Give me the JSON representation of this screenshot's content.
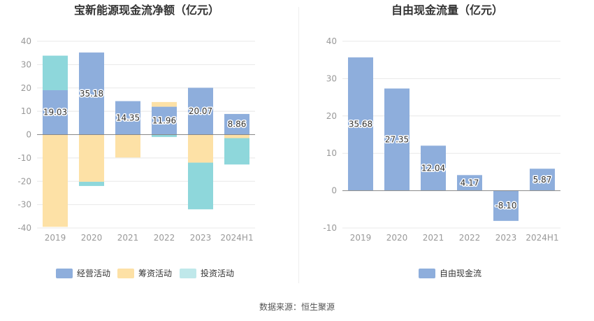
{
  "colors": {
    "operating": "#8eaedc",
    "financing": "#fde1a6",
    "investing": "#8ed7db",
    "investing_legend": "#bfe8ea",
    "fcf": "#8eaedc",
    "grid": "#e8e8e8",
    "axis_text": "#999999"
  },
  "source_text": "数据来源：恒生聚源",
  "chart_data": [
    {
      "type": "bar",
      "stacked": true,
      "title": "宝新能源现金流净额（亿元）",
      "categories": [
        "2019",
        "2020",
        "2021",
        "2022",
        "2023",
        "2024H1"
      ],
      "ylim": [
        -40,
        40
      ],
      "yticks": [
        40,
        30,
        20,
        10,
        0,
        -10,
        -20,
        -30,
        -40
      ],
      "grid": true,
      "legend": "bottom",
      "series": [
        {
          "name": "经营活动",
          "key": "operating",
          "values": [
            19.03,
            35.18,
            14.35,
            11.96,
            20.07,
            8.86
          ],
          "labels": [
            "19.03",
            "35.18",
            "14.35",
            "11.96",
            "20.07",
            "8.86"
          ]
        },
        {
          "name": "筹资活动",
          "key": "financing",
          "values": [
            -39.5,
            -20.2,
            -9.8,
            2.0,
            -12.0,
            -1.5
          ]
        },
        {
          "name": "投资活动",
          "key": "investing",
          "values": [
            14.8,
            -1.8,
            0.0,
            -1.0,
            -20.0,
            -11.3
          ]
        }
      ]
    },
    {
      "type": "bar",
      "title": "自由现金流量（亿元）",
      "categories": [
        "2019",
        "2020",
        "2021",
        "2022",
        "2023",
        "2024H1"
      ],
      "ylim": [
        -10,
        40
      ],
      "yticks": [
        40,
        30,
        20,
        10,
        0,
        -10
      ],
      "grid": true,
      "legend": "bottom",
      "series": [
        {
          "name": "自由现金流",
          "key": "fcf",
          "values": [
            35.68,
            27.35,
            12.04,
            4.17,
            -8.1,
            5.87
          ],
          "labels": [
            "35.68",
            "27.35",
            "12.04",
            "4.17",
            "-8.10",
            "5.87"
          ]
        }
      ]
    }
  ]
}
